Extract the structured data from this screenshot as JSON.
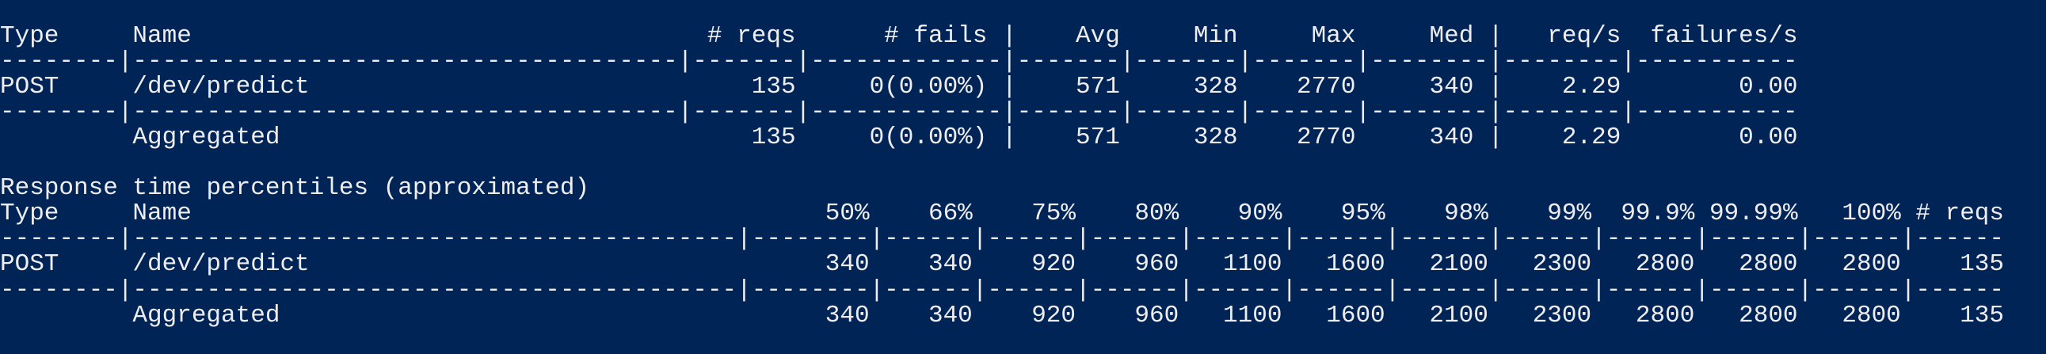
{
  "stats_table": {
    "header": [
      "Type",
      "Name",
      "# reqs",
      "# fails",
      "|",
      "Avg",
      "Min",
      "Max",
      "Med",
      "|",
      "req/s",
      "failures/s"
    ],
    "separator": "--------|-------------------------------------|-------|-------------|-------|-------|-------|--------|--------|-----------",
    "rows": [
      [
        "POST",
        "/dev/predict",
        "135",
        "0(0.00%)",
        "|",
        "571",
        "328",
        "2770",
        "340",
        "|",
        "2.29",
        "0.00"
      ],
      [
        null,
        "Aggregated",
        "135",
        "0(0.00%)",
        "|",
        "571",
        "328",
        "2770",
        "340",
        "|",
        "2.29",
        "0.00"
      ]
    ]
  },
  "percentiles_table": {
    "title": "Response time percentiles (approximated)",
    "header": [
      "Type",
      "Name",
      "50%",
      "66%",
      "75%",
      "80%",
      "90%",
      "95%",
      "98%",
      "99%",
      "99.9%",
      "99.99%",
      "100%",
      "# reqs"
    ],
    "separator": "--------|-----------------------------------------|--------|------|------|------|------|------|------|------|------|------|------|------",
    "rows": [
      [
        "POST",
        "/dev/predict",
        "340",
        "340",
        "920",
        "960",
        "1100",
        "1600",
        "2100",
        "2300",
        "2800",
        "2800",
        "2800",
        "135"
      ],
      [
        null,
        "Aggregated",
        "340",
        "340",
        "920",
        "960",
        "1100",
        "1600",
        "2100",
        "2300",
        "2800",
        "2800",
        "2800",
        "135"
      ]
    ]
  }
}
